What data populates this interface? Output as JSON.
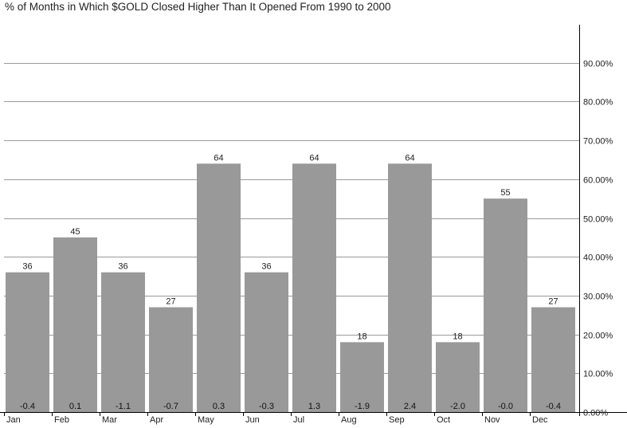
{
  "chart_data": {
    "type": "bar",
    "title": "% of Months in Which $GOLD Closed Higher Than It Opened From 1990 to 2000",
    "categories": [
      "Jan",
      "Feb",
      "Mar",
      "Apr",
      "May",
      "Jun",
      "Jul",
      "Aug",
      "Sep",
      "Oct",
      "Nov",
      "Dec"
    ],
    "series": [
      {
        "values": [
          36,
          45,
          36,
          27,
          64,
          36,
          64,
          18,
          64,
          18,
          55,
          27
        ],
        "data_labels": [
          "36",
          "45",
          "36",
          "27",
          "64",
          "36",
          "64",
          "18",
          "64",
          "18",
          "55",
          "27"
        ],
        "color": "#999999"
      }
    ],
    "secondary_values": [
      -0.4,
      0.1,
      -1.1,
      -0.7,
      0.3,
      -0.3,
      1.3,
      -1.9,
      2.4,
      -2.0,
      -0.0,
      -0.4
    ],
    "secondary_labels": [
      "-0.4",
      "0.1",
      "-1.1",
      "-0.7",
      "0.3",
      "-0.3",
      "1.3",
      "-1.9",
      "2.4",
      "-2.0",
      "-0.0",
      "-0.4"
    ],
    "xlabel": "",
    "ylabel": "",
    "ylim": [
      0,
      100
    ],
    "yticks": [
      0,
      10,
      20,
      30,
      40,
      50,
      60,
      70,
      80,
      90
    ],
    "ytick_labels": [
      "0.00%",
      "10.00%",
      "20.00%",
      "30.00%",
      "40.00%",
      "50.00%",
      "60.00%",
      "70.00%",
      "80.00%",
      "90.00%"
    ],
    "y_axis_side": "right",
    "grid": true,
    "legend": "none"
  }
}
